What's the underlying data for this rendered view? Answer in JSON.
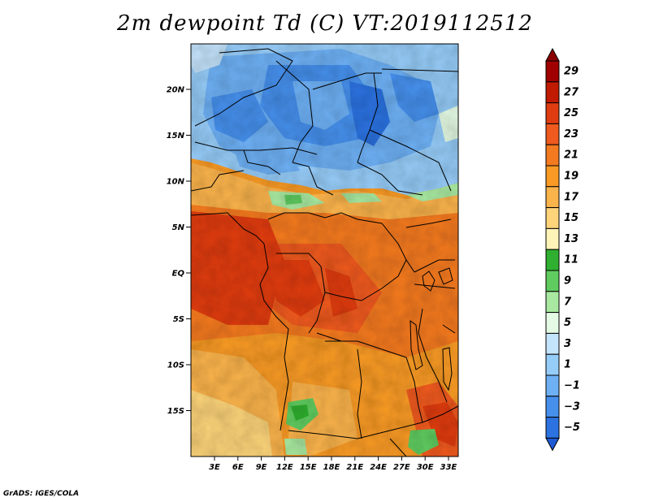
{
  "title": "2m dewpoint Td (C) VT:2019112512",
  "credit": "GrADS: IGES/COLA",
  "map": {
    "lat_range": [
      -19,
      25
    ],
    "lon_range": [
      0,
      29
    ],
    "lat_ticks": [
      {
        "value": 20,
        "label": "20N"
      },
      {
        "value": 15,
        "label": "15N"
      },
      {
        "value": 10,
        "label": "10N"
      },
      {
        "value": 5,
        "label": "5N"
      },
      {
        "value": 0,
        "label": "EQ"
      },
      {
        "value": -5,
        "label": "5S"
      },
      {
        "value": -10,
        "label": "10S"
      },
      {
        "value": -15,
        "label": "15S"
      }
    ],
    "lon_ticks": [
      {
        "value": 3,
        "label": "3E"
      },
      {
        "value": 6,
        "label": "6E"
      },
      {
        "value": 9,
        "label": "9E"
      },
      {
        "value": 12,
        "label": "12E"
      },
      {
        "value": 15,
        "label": "15E"
      },
      {
        "value": 18,
        "label": "18E"
      },
      {
        "value": 21,
        "label": "21E"
      },
      {
        "value": 24,
        "label": "24E"
      },
      {
        "value": 27,
        "label": "27E"
      },
      {
        "value": 30,
        "label": "30E"
      },
      {
        "value": 33,
        "label": "33E"
      }
    ]
  },
  "colorbar": {
    "levels": [
      {
        "label": "29",
        "color": "#a00000"
      },
      {
        "label": "27",
        "color": "#c01a00"
      },
      {
        "label": "25",
        "color": "#e03c12"
      },
      {
        "label": "23",
        "color": "#ef5a1e"
      },
      {
        "label": "21",
        "color": "#f47a20"
      },
      {
        "label": "19",
        "color": "#f89a24"
      },
      {
        "label": "17",
        "color": "#fbb44c"
      },
      {
        "label": "15",
        "color": "#fdd47a"
      },
      {
        "label": "13",
        "color": "#fff4b8"
      },
      {
        "label": "11",
        "color": "#30b030"
      },
      {
        "label": "9",
        "color": "#60cc60"
      },
      {
        "label": "7",
        "color": "#a8e8a0"
      },
      {
        "label": "5",
        "color": "#e4fae4"
      },
      {
        "label": "3",
        "color": "#c4e4fc"
      },
      {
        "label": "1",
        "color": "#96ccf8"
      },
      {
        "label": "−1",
        "color": "#6eb0f4"
      },
      {
        "label": "−3",
        "color": "#4690ec"
      },
      {
        "label": "−5",
        "color": "#2c72e0"
      }
    ],
    "bottom_color": "#1e5ad4",
    "top_color": "#8a0000"
  },
  "colors": {
    "coast_line": "#000000",
    "frame": "#000000"
  }
}
